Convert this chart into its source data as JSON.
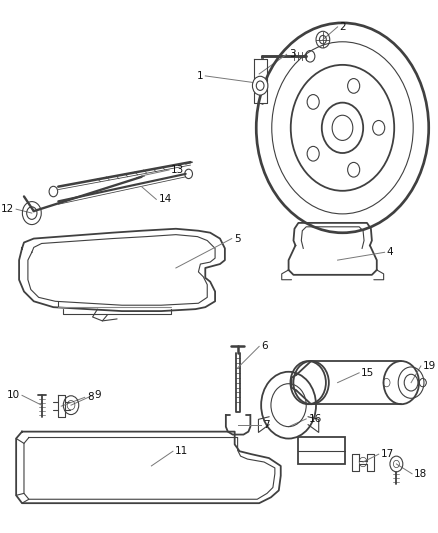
{
  "bg_color": "#ffffff",
  "line_color": "#404040",
  "leader_color": "#777777",
  "fig_width": 4.38,
  "fig_height": 5.33,
  "dpi": 100
}
